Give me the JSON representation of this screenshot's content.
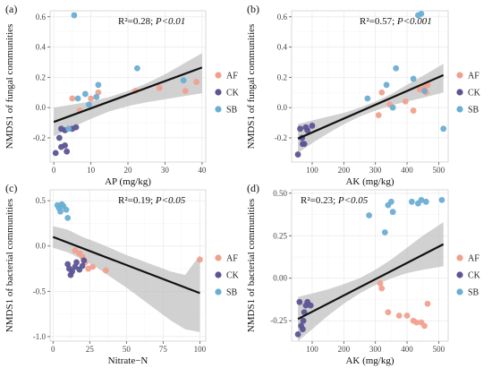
{
  "colors": {
    "AF": "#f2a08e",
    "CK": "#5b5595",
    "SB": "#6aaed3"
  },
  "legend_order": [
    "AF",
    "CK",
    "SB"
  ],
  "chart_data": [
    {
      "type": "scatter",
      "panel": "(a)",
      "stat_r2": "R²=0.28; ",
      "stat_p": "P<0.01",
      "xlabel": "AP (mg/kg)",
      "ylabel": "NMDS1 of fungal communities",
      "xlim": [
        -1,
        41
      ],
      "ylim": [
        -0.36,
        0.64
      ],
      "xticks": [
        0,
        10,
        20,
        30,
        40
      ],
      "yticks": [
        -0.2,
        0.0,
        0.2,
        0.4,
        0.6
      ],
      "ytick_labels": [
        "-0.2",
        "0.0",
        "0.2",
        "0.4",
        "0.6"
      ],
      "fit": {
        "x": [
          0,
          40
        ],
        "y": [
          -0.095,
          0.265
        ]
      },
      "band": {
        "x": [
          0,
          5,
          10,
          15,
          20,
          25,
          30,
          35,
          40
        ],
        "lo": [
          -0.19,
          -0.13,
          -0.075,
          -0.025,
          0.01,
          0.035,
          0.055,
          0.075,
          0.095
        ],
        "hi": [
          0.0,
          0.02,
          0.04,
          0.07,
          0.11,
          0.16,
          0.22,
          0.29,
          0.36
        ]
      },
      "series": [
        {
          "name": "AF",
          "points": [
            [
              5.0,
              0.06
            ],
            [
              7.0,
              -0.02
            ],
            [
              10.0,
              0.06
            ],
            [
              12.0,
              0.1
            ],
            [
              22.0,
              0.11
            ],
            [
              28.5,
              0.13
            ],
            [
              35.5,
              0.11
            ],
            [
              38.5,
              0.17
            ]
          ]
        },
        {
          "name": "CK",
          "points": [
            [
              0.5,
              -0.3
            ],
            [
              1.5,
              -0.2
            ],
            [
              2.0,
              -0.14
            ],
            [
              2.0,
              -0.26
            ],
            [
              3.0,
              -0.15
            ],
            [
              3.5,
              -0.29
            ],
            [
              3.0,
              -0.25
            ],
            [
              5.0,
              -0.14
            ],
            [
              6.0,
              -0.13
            ]
          ]
        },
        {
          "name": "SB",
          "points": [
            [
              4.0,
              -0.14
            ],
            [
              5.5,
              0.61
            ],
            [
              6.5,
              0.06
            ],
            [
              8.5,
              0.09
            ],
            [
              9.5,
              0.02
            ],
            [
              11.5,
              0.07
            ],
            [
              12.0,
              0.15
            ],
            [
              22.5,
              0.26
            ],
            [
              35.0,
              0.18
            ]
          ]
        }
      ]
    },
    {
      "type": "scatter",
      "panel": "(b)",
      "stat_r2": "R²=0.57; ",
      "stat_p": "P<0.001",
      "xlabel": "AK (mg/kg)",
      "ylabel": "NMDS1 of fungal communities",
      "xlim": [
        35,
        530
      ],
      "ylim": [
        -0.36,
        0.64
      ],
      "xticks": [
        100,
        200,
        300,
        400,
        500
      ],
      "yticks": [
        -0.2,
        0.0,
        0.2,
        0.4,
        0.6
      ],
      "ytick_labels": [
        "-0.2",
        "0.0",
        "0.2",
        "0.4",
        "0.6"
      ],
      "fit": {
        "x": [
          55,
          515
        ],
        "y": [
          -0.205,
          0.215
        ]
      },
      "band": {
        "x": [
          55,
          100,
          150,
          200,
          250,
          300,
          350,
          400,
          450,
          515
        ],
        "lo": [
          -0.3,
          -0.235,
          -0.17,
          -0.11,
          -0.06,
          -0.02,
          0.015,
          0.04,
          0.065,
          0.1
        ],
        "hi": [
          -0.11,
          -0.085,
          -0.06,
          -0.035,
          0.0,
          0.04,
          0.09,
          0.15,
          0.21,
          0.29
        ]
      },
      "series": [
        {
          "name": "AF",
          "points": [
            [
              310,
              -0.05
            ],
            [
              320,
              0.1
            ],
            [
              345,
              0.02
            ],
            [
              395,
              0.04
            ],
            [
              420,
              -0.02
            ],
            [
              440,
              0.12
            ],
            [
              455,
              0.13
            ],
            [
              460,
              0.1
            ],
            [
              465,
              0.15
            ]
          ]
        },
        {
          "name": "CK",
          "points": [
            [
              55,
              -0.31
            ],
            [
              62,
              -0.14
            ],
            [
              68,
              -0.2
            ],
            [
              70,
              -0.24
            ],
            [
              75,
              -0.24
            ],
            [
              80,
              -0.13
            ],
            [
              85,
              -0.15
            ],
            [
              100,
              -0.12
            ]
          ]
        },
        {
          "name": "SB",
          "points": [
            [
              275,
              0.06
            ],
            [
              335,
              0.15
            ],
            [
              355,
              0.0
            ],
            [
              365,
              0.26
            ],
            [
              420,
              0.19
            ],
            [
              435,
              0.61
            ],
            [
              445,
              0.62
            ],
            [
              455,
              0.11
            ],
            [
              515,
              -0.14
            ]
          ]
        }
      ]
    },
    {
      "type": "scatter",
      "panel": "(c)",
      "stat_r2": "R²=0.19; ",
      "stat_p": "P<0.05",
      "xlabel": "Nitrate−N",
      "ylabel": "NMDS1 of bacterial communities",
      "xlim": [
        -2,
        104
      ],
      "ylim": [
        -1.05,
        0.62
      ],
      "xticks": [
        0,
        25,
        50,
        75,
        100
      ],
      "yticks": [
        -1.0,
        -0.5,
        0.0,
        0.5
      ],
      "ytick_labels": [
        "-1.0",
        "-0.5",
        "0.0",
        "0.5"
      ],
      "fit": {
        "x": [
          0,
          100
        ],
        "y": [
          0.1,
          -0.52
        ]
      },
      "band": {
        "x": [
          0,
          10,
          20,
          30,
          40,
          50,
          60,
          70,
          80,
          90,
          100
        ],
        "lo": [
          -0.02,
          -0.07,
          -0.15,
          -0.24,
          -0.35,
          -0.46,
          -0.58,
          -0.7,
          -0.82,
          -0.92,
          -0.95
        ],
        "hi": [
          0.22,
          0.18,
          0.1,
          0.04,
          -0.03,
          -0.1,
          -0.16,
          -0.22,
          -0.28,
          -0.32,
          -0.1
        ]
      },
      "series": [
        {
          "name": "AF",
          "points": [
            [
              15,
              -0.05
            ],
            [
              18,
              -0.08
            ],
            [
              20,
              -0.12
            ],
            [
              22,
              -0.18
            ],
            [
              24,
              -0.25
            ],
            [
              27,
              -0.23
            ],
            [
              36,
              -0.27
            ],
            [
              100,
              -0.15
            ]
          ]
        },
        {
          "name": "CK",
          "points": [
            [
              10,
              -0.2
            ],
            [
              11,
              -0.25
            ],
            [
              12,
              -0.32
            ],
            [
              13,
              -0.28
            ],
            [
              15,
              -0.23
            ],
            [
              16,
              -0.18
            ],
            [
              18,
              -0.26
            ],
            [
              20,
              -0.22
            ],
            [
              21,
              -0.16
            ]
          ]
        },
        {
          "name": "SB",
          "points": [
            [
              3,
              0.45
            ],
            [
              4,
              0.42
            ],
            [
              5,
              0.38
            ],
            [
              6,
              0.46
            ],
            [
              7,
              0.44
            ],
            [
              9,
              0.4
            ],
            [
              10,
              0.31
            ]
          ]
        }
      ]
    },
    {
      "type": "scatter",
      "panel": "(d)",
      "stat_r2": "R²=0.23; ",
      "stat_p": "P<0.05",
      "xlabel": "AK (mg/kg)",
      "ylabel": "NMDS1 of bacterial communities",
      "xlim": [
        35,
        530
      ],
      "ylim": [
        -0.37,
        0.52
      ],
      "xticks": [
        100,
        200,
        300,
        400,
        500
      ],
      "yticks": [
        -0.25,
        0.0,
        0.25,
        0.5
      ],
      "ytick_labels": [
        "-0.25",
        "0.00",
        "0.25",
        "0.50"
      ],
      "fit": {
        "x": [
          55,
          515
        ],
        "y": [
          -0.24,
          0.2
        ]
      },
      "band": {
        "x": [
          55,
          100,
          150,
          200,
          250,
          300,
          350,
          400,
          450,
          515
        ],
        "lo": [
          -0.37,
          -0.3,
          -0.22,
          -0.15,
          -0.09,
          -0.04,
          0.0,
          0.03,
          0.05,
          0.07
        ],
        "hi": [
          -0.11,
          -0.09,
          -0.065,
          -0.035,
          0.0,
          0.05,
          0.11,
          0.18,
          0.25,
          0.33
        ]
      },
      "series": [
        {
          "name": "AF",
          "points": [
            [
              315,
              -0.03
            ],
            [
              320,
              -0.06
            ],
            [
              340,
              -0.2
            ],
            [
              375,
              -0.22
            ],
            [
              400,
              -0.22
            ],
            [
              420,
              -0.25
            ],
            [
              430,
              -0.26
            ],
            [
              445,
              -0.26
            ],
            [
              455,
              -0.28
            ],
            [
              465,
              -0.15
            ]
          ]
        },
        {
          "name": "CK",
          "points": [
            [
              55,
              -0.33
            ],
            [
              60,
              -0.14
            ],
            [
              65,
              -0.28
            ],
            [
              70,
              -0.3
            ],
            [
              72,
              -0.25
            ],
            [
              75,
              -0.2
            ],
            [
              80,
              -0.16
            ],
            [
              85,
              -0.14
            ],
            [
              95,
              -0.16
            ]
          ]
        },
        {
          "name": "SB",
          "points": [
            [
              280,
              0.37
            ],
            [
              330,
              0.27
            ],
            [
              340,
              0.43
            ],
            [
              350,
              0.45
            ],
            [
              355,
              0.39
            ],
            [
              415,
              0.45
            ],
            [
              435,
              0.44
            ],
            [
              445,
              0.46
            ],
            [
              460,
              0.45
            ],
            [
              510,
              0.46
            ]
          ]
        }
      ]
    }
  ]
}
